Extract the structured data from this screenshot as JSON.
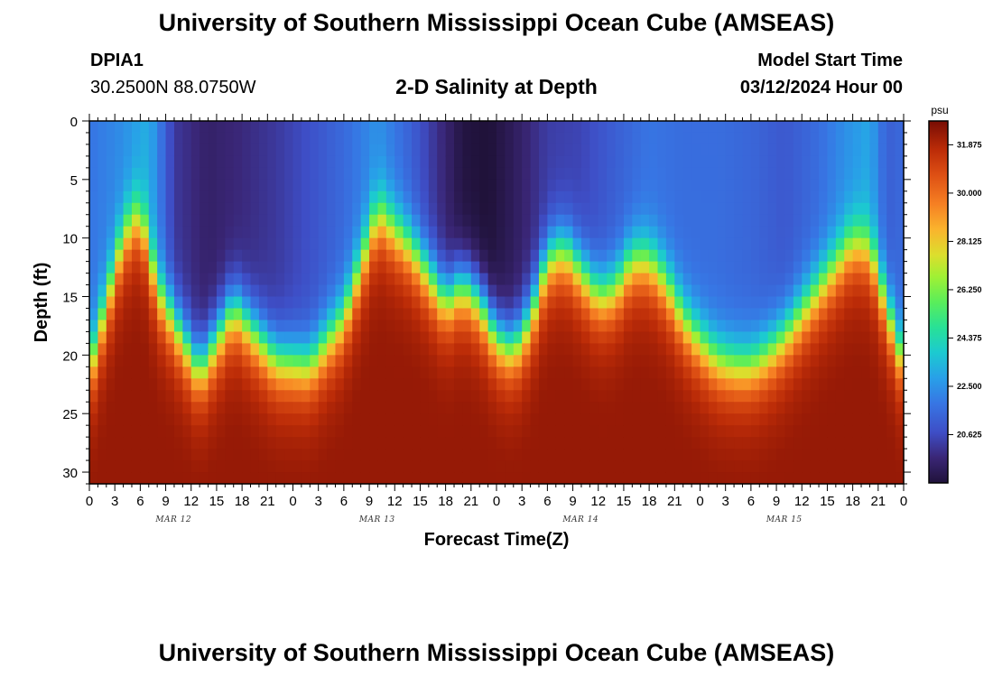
{
  "header": {
    "title": "University of Southern Mississippi Ocean Cube (AMSEAS)",
    "station_id": "DPIA1",
    "station_coords": "30.2500N  88.0750W",
    "chart_title": "2-D Salinity at Depth",
    "model_start_label": "Model Start Time",
    "model_start_value": "03/12/2024 Hour 00"
  },
  "footer": {
    "title": "University of Southern Mississippi Ocean Cube (AMSEAS)"
  },
  "chart_data": {
    "type": "heatmap",
    "title": "2-D Salinity at Depth",
    "xlabel": "Forecast Time(Z)",
    "ylabel": "Depth (ft)",
    "x_range_hours": [
      0,
      96
    ],
    "x_tick_step_hours": 3,
    "x_tick_labels": [
      "0",
      "3",
      "6",
      "9",
      "12",
      "15",
      "18",
      "21",
      "0",
      "3",
      "6",
      "9",
      "12",
      "15",
      "18",
      "21",
      "0",
      "3",
      "6",
      "9",
      "12",
      "15",
      "18",
      "21",
      "0",
      "3",
      "6",
      "9",
      "12",
      "15",
      "18",
      "21",
      "0"
    ],
    "date_labels": [
      {
        "text": "MAR 12",
        "hour": 9.5
      },
      {
        "text": "MAR 13",
        "hour": 33.5
      },
      {
        "text": "MAR 14",
        "hour": 57.5
      },
      {
        "text": "MAR 15",
        "hour": 81.5
      }
    ],
    "y_range_ft": [
      0,
      31
    ],
    "y_ticks": [
      0,
      5,
      10,
      15,
      20,
      25,
      30
    ],
    "y_tick_labels": [
      "0",
      "5",
      "10",
      "15",
      "20",
      "25",
      "30"
    ],
    "colorbar": {
      "unit": "psu",
      "range": [
        18.75,
        32.8
      ],
      "tick_values": [
        31.875,
        30.0,
        28.125,
        26.25,
        24.375,
        22.5,
        20.625
      ],
      "tick_labels": [
        "31.875",
        "30.000",
        "28.125",
        "26.250",
        "24.375",
        "22.500",
        "20.625"
      ]
    },
    "halocline_depth_ft": {
      "hours": [
        0,
        4,
        6,
        8,
        13,
        17,
        22,
        26,
        30,
        34,
        38,
        42,
        44,
        46,
        48,
        50,
        52,
        54,
        56,
        58,
        60,
        62,
        64,
        66,
        68,
        70,
        72,
        74,
        76,
        78,
        80,
        82,
        84,
        86,
        88,
        90,
        92,
        94,
        96
      ],
      "values": [
        21.5,
        10,
        8,
        14.5,
        21.5,
        16,
        20.5,
        21,
        17,
        8,
        11,
        15.5,
        14,
        15.5,
        18.5,
        19.5,
        17,
        12,
        11,
        13,
        15,
        14.5,
        12,
        12,
        14,
        17,
        19,
        20.5,
        21,
        21,
        20,
        18.5,
        16.5,
        14.5,
        12.5,
        10.5,
        11,
        16,
        21
      ]
    },
    "surface_salinity_psu": {
      "hours": [
        0,
        4,
        7,
        10,
        14,
        18,
        22,
        26,
        30,
        34,
        38,
        41,
        44,
        47,
        50,
        54,
        58,
        62,
        66,
        70,
        74,
        78,
        82,
        86,
        89,
        92,
        94,
        96
      ],
      "values": [
        21.8,
        22.4,
        23.2,
        20.2,
        19.5,
        19.8,
        20.2,
        20.8,
        21.5,
        22.5,
        21.2,
        20.0,
        18.9,
        18.7,
        19.3,
        20.3,
        20.5,
        21.2,
        21.8,
        21.6,
        21.6,
        21.4,
        21.0,
        21.6,
        22.4,
        23.0,
        21.2,
        21.5
      ]
    },
    "bottom_salinity_psu": 32.0
  }
}
